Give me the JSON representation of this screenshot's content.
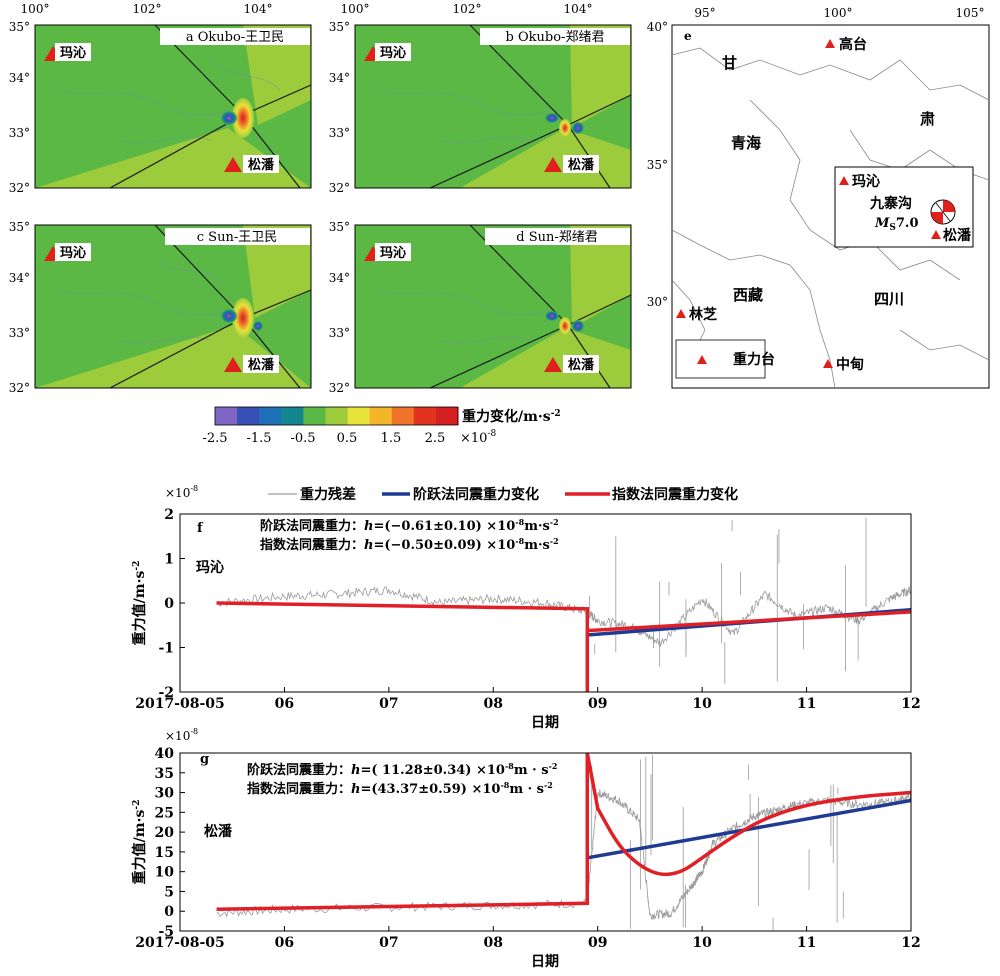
{
  "colors": {
    "map_background": "#5cb845",
    "map_high_zone": "#9ccb3c",
    "fault_line": "#1a1a1a",
    "station_marker": "#e0201a",
    "gray_residual": "#9a9a9a",
    "step_line": "#1f3a93",
    "exp_line": "#e01f26"
  },
  "maps": [
    {
      "id": "a",
      "label": "a Okubo-王卫民",
      "xticks": [
        "100°",
        "102°",
        "104°"
      ],
      "yticks": [
        "35°",
        "34°",
        "33°",
        "32°"
      ],
      "stations": [
        "玛沁",
        "松潘"
      ],
      "pattern": "okubo-wang"
    },
    {
      "id": "b",
      "label": "b Okubo-郑绪君",
      "xticks": [
        "100°",
        "102°",
        "104°"
      ],
      "yticks": [
        "35°",
        "34°",
        "33°",
        "32°"
      ],
      "stations": [
        "玛沁",
        "松潘"
      ],
      "pattern": "okubo-zheng"
    },
    {
      "id": "c",
      "label": "c Sun-王卫民",
      "xticks": [],
      "yticks": [
        "35°",
        "34°",
        "33°",
        "32°"
      ],
      "stations": [
        "玛沁",
        "松潘"
      ],
      "pattern": "sun-wang"
    },
    {
      "id": "d",
      "label": "d Sun-郑绪君",
      "xticks": [],
      "yticks": [
        "35°",
        "34°",
        "33°",
        "32°"
      ],
      "stations": [
        "玛沁",
        "松潘"
      ],
      "pattern": "sun-zheng"
    }
  ],
  "colorbar": {
    "title": "重力变化/m·s",
    "title_exp": "-2",
    "tick_labels": [
      "-2.5",
      "-1.5",
      "-0.5",
      "0.5",
      "1.5",
      "2.5"
    ],
    "scale_label": "×10",
    "scale_exp": "-8",
    "colors": [
      "#7f66c4",
      "#3a4fb5",
      "#1e6fb8",
      "#12878d",
      "#5cb845",
      "#9ccb3c",
      "#e8e23a",
      "#f5b52a",
      "#f0752a",
      "#e0341f",
      "#d42020"
    ]
  },
  "overview_map": {
    "label": "e",
    "xticks": [
      "95°",
      "100°",
      "105°"
    ],
    "yticks": [
      "40°",
      "35°",
      "30°"
    ],
    "provinces": [
      "甘",
      "肃",
      "青海",
      "西藏",
      "四川"
    ],
    "stations": [
      "高台",
      "玛沁",
      "松潘",
      "林芝",
      "中甸"
    ],
    "quake_name": "九寨沟",
    "quake_mag_symbol": "M",
    "quake_mag_sub": "S",
    "quake_mag_value": "7.0",
    "legend_label": "重力台"
  },
  "legend": {
    "residual": "重力残差",
    "step": "阶跃法同震重力变化",
    "exp": "指数法同震重力变化"
  },
  "panel_f": {
    "label": "f",
    "station": "玛沁",
    "scale_label": "×10",
    "scale_exp": "-8",
    "ylabel": "重力值/m·s",
    "ylabel_exp": "-2",
    "xlabel": "日期",
    "annot_step_prefix": "阶跃法同震重力：",
    "annot_exp_prefix": "指数法同震重力：",
    "annot_symbol": "h",
    "annot_step_value": "=(−0.61±0.10) ×10",
    "annot_exp_value": "=(−0.50±0.09) ×10",
    "annot_exp_sup": "-8",
    "annot_unit": "m·s",
    "annot_unit_sup": "-2",
    "x_tick_labels": [
      "2017-08-05",
      "06",
      "07",
      "08",
      "09",
      "10",
      "11",
      "12"
    ],
    "y_tick_labels": [
      "2",
      "1",
      "0",
      "-1",
      "-2"
    ]
  },
  "panel_g": {
    "label": "g",
    "station": "松潘",
    "scale_label": "×10",
    "scale_exp": "-8",
    "ylabel": "重力值/m·s",
    "ylabel_exp": "-2",
    "xlabel": "日期",
    "annot_step_prefix": "阶跃法同震重力：",
    "annot_exp_prefix": "指数法同震重力：",
    "annot_symbol": "h",
    "annot_step_value": "=( 11.28±0.34) ×10",
    "annot_exp_value": "=(43.37±0.59) ×10",
    "annot_exp_sup": "-8",
    "annot_unit": "m · s",
    "annot_unit_sup": "-2",
    "x_tick_labels": [
      "2017-08-05",
      "06",
      "07",
      "08",
      "09",
      "10",
      "11",
      "12"
    ],
    "y_tick_labels": [
      "40",
      "35",
      "30",
      "25",
      "20",
      "15",
      "10",
      "5",
      "0",
      "-5"
    ]
  },
  "chart_data": [
    {
      "type": "line",
      "panel": "f",
      "x_unit": "date (2017-08)",
      "xlim": [
        5.0,
        12.0
      ],
      "ylim": [
        -2,
        2
      ],
      "y_scale": "×10^-8 m·s^-2",
      "series": [
        {
          "name": "阶跃法同震重力变化",
          "x": [
            8.9,
            12.0
          ],
          "y": [
            -0.72,
            -0.15
          ]
        },
        {
          "name": "指数法同震重力变化",
          "x": [
            5.35,
            8.9,
            8.9,
            8.9,
            12.0
          ],
          "y": [
            0.0,
            -0.13,
            -2.0,
            -0.62,
            -0.2
          ]
        },
        {
          "name": "重力残差",
          "x": [
            5.35,
            6.0,
            6.5,
            7.0,
            7.5,
            8.0,
            8.5,
            8.9,
            9.0,
            9.3,
            9.6,
            10.0,
            10.3,
            10.6,
            10.9,
            11.2,
            11.5,
            11.8,
            12.0
          ],
          "y": [
            0.0,
            0.15,
            0.2,
            0.3,
            0.0,
            0.1,
            0.0,
            -0.2,
            -0.4,
            -0.5,
            -0.9,
            0.1,
            -0.7,
            0.2,
            -0.3,
            -0.1,
            -0.4,
            0.1,
            0.3
          ]
        }
      ]
    },
    {
      "type": "line",
      "panel": "g",
      "x_unit": "date (2017-08)",
      "xlim": [
        5.0,
        12.0
      ],
      "ylim": [
        -5,
        40
      ],
      "y_scale": "×10^-8 m·s^-2",
      "series": [
        {
          "name": "阶跃法同震重力变化",
          "x": [
            8.9,
            12.0
          ],
          "y": [
            13.5,
            28.0
          ]
        },
        {
          "name": "指数法同震重力变化",
          "x": [
            5.35,
            8.9,
            8.9,
            9.0,
            9.2,
            9.4,
            9.6,
            9.8,
            10.0,
            10.3,
            10.6,
            11.0,
            11.5,
            12.0
          ],
          "y": [
            0.5,
            2.0,
            40.0,
            26.0,
            16.5,
            11.5,
            9.0,
            9.8,
            13.5,
            19.0,
            23.5,
            27.0,
            29.0,
            30.0
          ]
        },
        {
          "name": "重力残差",
          "x": [
            5.35,
            6.0,
            7.0,
            8.0,
            8.9,
            9.0,
            9.2,
            9.4,
            9.5,
            9.7,
            9.9,
            10.0,
            10.1,
            10.3,
            10.5,
            10.7,
            10.9,
            11.2,
            11.5,
            11.8,
            12.0
          ],
          "y": [
            -0.5,
            0.5,
            1.0,
            1.5,
            2.0,
            30.0,
            28.0,
            23.0,
            -1.0,
            -0.5,
            6.5,
            10.0,
            17.0,
            21.0,
            24.0,
            25.5,
            27.0,
            28.0,
            27.0,
            27.5,
            29.0
          ]
        }
      ]
    }
  ]
}
